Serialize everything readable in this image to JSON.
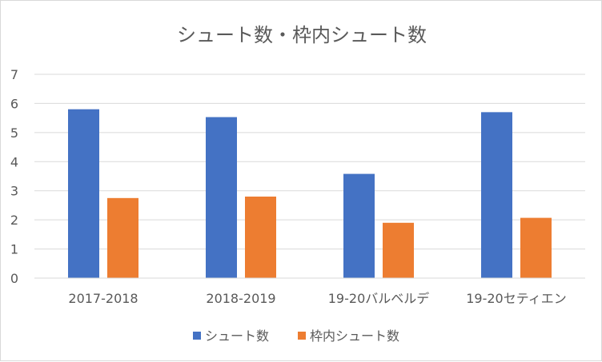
{
  "chart_data": {
    "type": "bar",
    "title": "シュート数・枠内シュート数",
    "categories": [
      "2017-2018",
      "2018-2019",
      "19-20バルベルデ",
      "19-20セティエン"
    ],
    "series": [
      {
        "name": "シュート数",
        "values": [
          5.8,
          5.53,
          3.58,
          5.7
        ],
        "color": "#4472c4"
      },
      {
        "name": "枠内シュート数",
        "values": [
          2.75,
          2.8,
          1.9,
          2.07
        ],
        "color": "#ed7d31"
      }
    ],
    "ylim": [
      0,
      7
    ],
    "yticks": [
      "0",
      "1",
      "2",
      "3",
      "4",
      "5",
      "6",
      "7"
    ],
    "xlabel": "",
    "ylabel": "",
    "grid": true,
    "legend_position": "bottom"
  }
}
